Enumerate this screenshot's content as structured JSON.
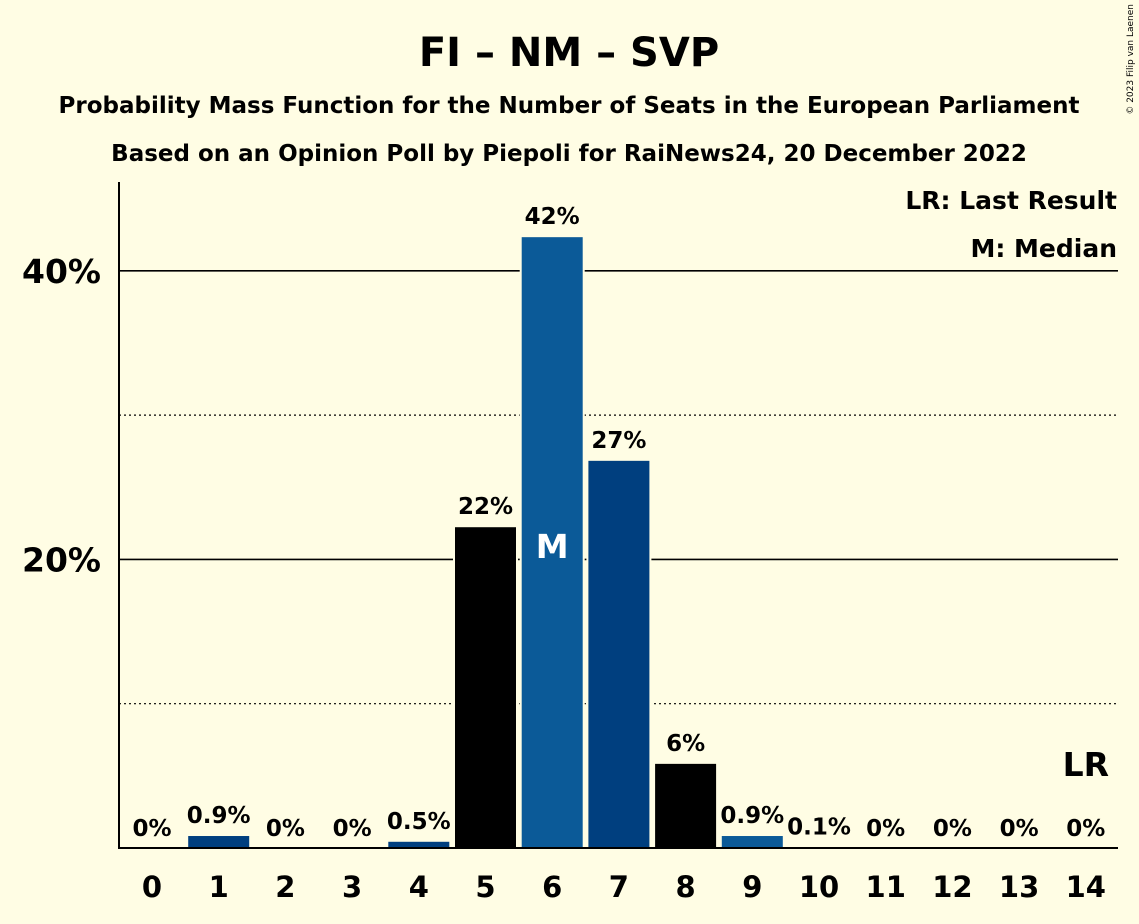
{
  "colors": {
    "background": "#FFFDE4",
    "bar_black": "#000000",
    "bar_dark_blue": "#003F7F",
    "bar_mid_blue": "#0B5A98",
    "median_text": "#FFFFFF"
  },
  "copyright": "© 2023 Filip van Laenen",
  "chart_data": {
    "type": "bar",
    "title": "FI – NM – SVP",
    "subtitle_1": "Probability Mass Function for the Number of Seats in the European Parliament",
    "subtitle_2": "Based on an Opinion Poll by Piepoli for RaiNews24, 20 December 2022",
    "xlabel": "",
    "ylabel": "",
    "ylim": [
      0,
      46
    ],
    "categories": [
      "0",
      "1",
      "2",
      "3",
      "4",
      "5",
      "6",
      "7",
      "8",
      "9",
      "10",
      "11",
      "12",
      "13",
      "14"
    ],
    "values": [
      0,
      0.9,
      0,
      0,
      0.5,
      22.3,
      42.4,
      26.9,
      5.9,
      0.9,
      0.1,
      0,
      0,
      0,
      0
    ],
    "value_labels": [
      "0%",
      "0.9%",
      "0%",
      "0%",
      "0.5%",
      "22%",
      "42%",
      "27%",
      "6%",
      "0.9%",
      "0.1%",
      "0%",
      "0%",
      "0%",
      "0%"
    ],
    "bar_colors": [
      "#003F7F",
      "#003F7F",
      "#003F7F",
      "#003F7F",
      "#003F7F",
      "#000000",
      "#0B5A98",
      "#003F7F",
      "#000000",
      "#0B5A98",
      "#003F7F",
      "#003F7F",
      "#003F7F",
      "#003F7F",
      "#003F7F"
    ],
    "y_ticks": [
      {
        "value": 20,
        "label": "20%"
      },
      {
        "value": 40,
        "label": "40%"
      }
    ],
    "minor_gridlines": [
      10,
      30
    ],
    "median_index": 6,
    "median_marker": "M",
    "last_result_index": 14,
    "last_result_marker": "LR",
    "legend": {
      "placement": "top-right",
      "items": [
        "LR: Last Result",
        "M: Median"
      ]
    }
  }
}
